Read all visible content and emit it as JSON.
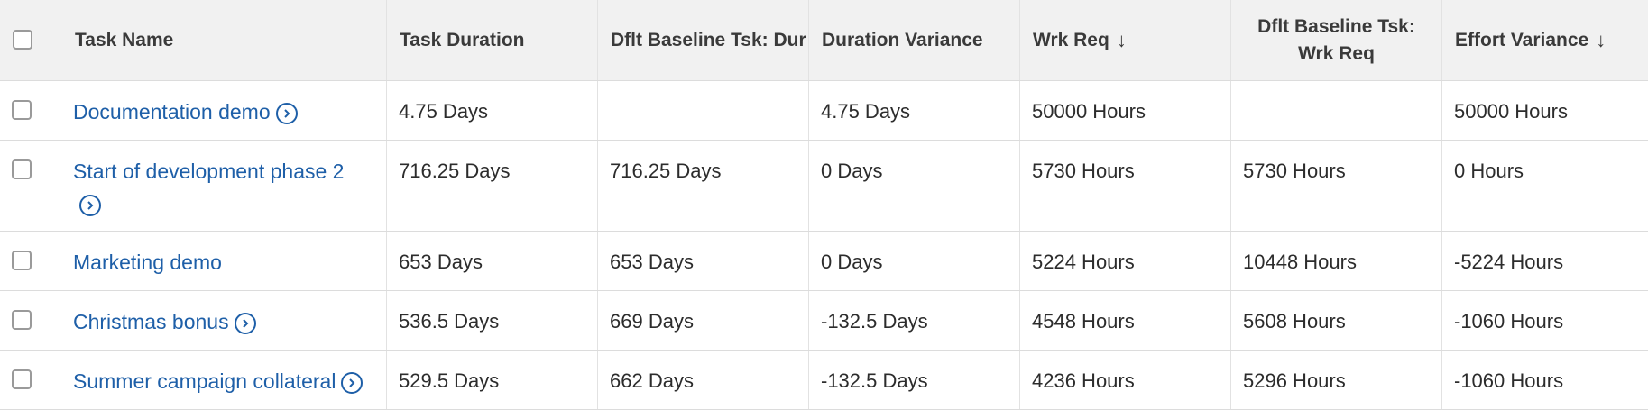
{
  "header": {
    "task_name": "Task Name",
    "task_duration": "Task Duration",
    "baseline_duration": "Dflt Baseline Tsk: Dur",
    "duration_variance": "Duration Variance",
    "work_required": "Wrk Req",
    "baseline_work_line1": "Dflt Baseline Tsk:",
    "baseline_work_line2": "Wrk Req",
    "effort_variance": "Effort Variance",
    "sort_glyph": "↓"
  },
  "rows": [
    {
      "name": "Documentation demo",
      "has_arrow": true,
      "task_duration": "4.75 Days",
      "baseline_duration": "",
      "duration_variance": "4.75 Days",
      "work_required": "50000 Hours",
      "baseline_work": "",
      "effort_variance": "50000 Hours"
    },
    {
      "name": "Start of development phase 2",
      "has_arrow": true,
      "task_duration": "716.25 Days",
      "baseline_duration": "716.25 Days",
      "duration_variance": "0 Days",
      "work_required": "5730 Hours",
      "baseline_work": "5730 Hours",
      "effort_variance": "0 Hours"
    },
    {
      "name": "Marketing demo",
      "has_arrow": false,
      "task_duration": "653 Days",
      "baseline_duration": "653 Days",
      "duration_variance": "0 Days",
      "work_required": "5224 Hours",
      "baseline_work": "10448 Hours",
      "effort_variance": "-5224 Hours"
    },
    {
      "name": "Christmas bonus",
      "has_arrow": true,
      "task_duration": "536.5 Days",
      "baseline_duration": "669 Days",
      "duration_variance": "-132.5 Days",
      "work_required": "4548 Hours",
      "baseline_work": "5608 Hours",
      "effort_variance": "-1060 Hours"
    },
    {
      "name": "Summer campaign collateral",
      "has_arrow": true,
      "task_duration": "529.5 Days",
      "baseline_duration": "662 Days",
      "duration_variance": "-132.5 Days",
      "work_required": "4236 Hours",
      "baseline_work": "5296 Hours",
      "effort_variance": "-1060 Hours"
    }
  ]
}
